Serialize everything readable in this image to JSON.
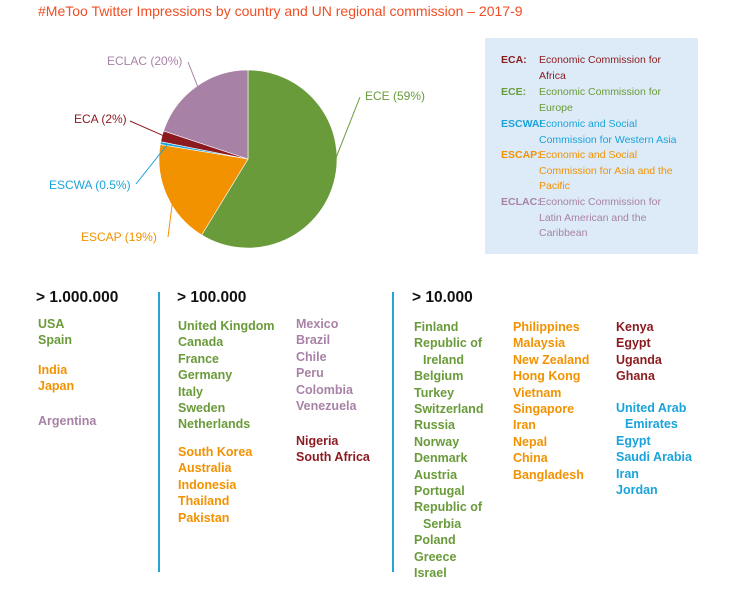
{
  "title": "#MeToo Twitter Impressions by country and UN regional commission – 2017-9",
  "colors": {
    "ECE": "#6a9b3a",
    "ESCAP": "#f39200",
    "ECLAC": "#a882a6",
    "ECA": "#8b1b1f",
    "ESCWA": "#1aa3db",
    "legend_bg": "#dcebf7",
    "divider": "#29a3d6"
  },
  "chart_data": {
    "type": "pie",
    "series": [
      {
        "key": "ECE",
        "label": "ECE (59%)",
        "value": 59
      },
      {
        "key": "ESCAP",
        "label": "ESCAP (19%)",
        "value": 19
      },
      {
        "key": "ESCWA",
        "label": "ESCWA (0.5%)",
        "value": 0.5
      },
      {
        "key": "ECA",
        "label": "ECA (2%)",
        "value": 2
      },
      {
        "key": "ECLAC",
        "label": "ECLAC (20%)",
        "value": 20
      }
    ]
  },
  "legend": [
    {
      "key": "ECA:",
      "text": "Economic Commission for Africa"
    },
    {
      "key": "ECE:",
      "text": "Economic Commission for Europe"
    },
    {
      "key": "ESCWA:",
      "text": "Economic and Social Commission for Western Asia"
    },
    {
      "key": "ESCAP:",
      "text": "Economic and Social Commission for Asia and the Pacific"
    },
    {
      "key": "ECLAC:",
      "text": "Economic Commission for Latin American and the Caribbean"
    }
  ],
  "tiers": {
    "t1": {
      "header": "> 1.000.000",
      "ece": [
        "USA",
        "Spain"
      ],
      "escap": [
        "India",
        "Japan"
      ],
      "eclac": [
        "Argentina"
      ]
    },
    "t2": {
      "header": "> 100.000",
      "ece": [
        "United Kingdom",
        "Canada",
        "France",
        "Germany",
        "Italy",
        "Sweden",
        "Netherlands"
      ],
      "escap": [
        "South Korea",
        "Australia",
        "Indonesia",
        "Thailand",
        "Pakistan"
      ],
      "eclac": [
        "Mexico",
        "Brazil",
        "Chile",
        "Peru",
        "Colombia",
        "Venezuela"
      ],
      "eca": [
        "Nigeria",
        "South Africa"
      ]
    },
    "t3": {
      "header": "> 10.000",
      "ece": [
        "Finland",
        "Republic of",
        "Ireland",
        "Belgium",
        "Turkey",
        "Switzerland",
        "Russia",
        "Norway",
        "Denmark",
        "Austria",
        "Portugal",
        "Republic of",
        "Serbia",
        "Poland",
        "Greece",
        "Israel"
      ],
      "escap": [
        "Philippines",
        "Malaysia",
        "New Zealand",
        "Hong Kong",
        "Vietnam",
        "Singapore",
        "Iran",
        "Nepal",
        "China",
        "Bangladesh"
      ],
      "eca": [
        "Kenya",
        "Egypt",
        "Uganda",
        "Ghana"
      ],
      "escwa": [
        "United Arab",
        "Emirates",
        "Egypt",
        "Saudi Arabia",
        "Iran",
        "Jordan"
      ]
    }
  }
}
